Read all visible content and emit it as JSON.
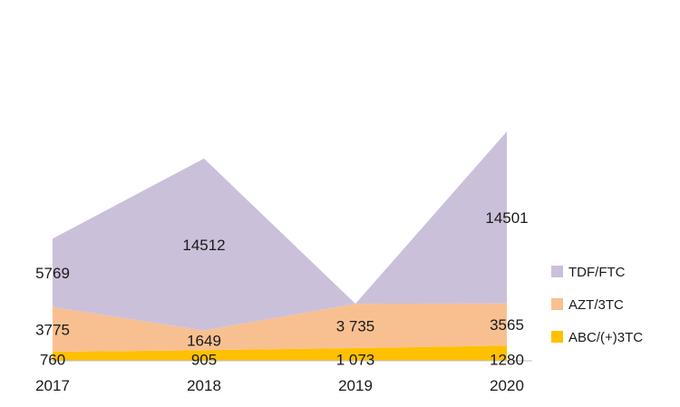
{
  "chart_data": {
    "type": "area",
    "stacked": true,
    "categories": [
      "2017",
      "2018",
      "2019",
      "2020"
    ],
    "series": [
      {
        "name": "ABC/(+)3TC",
        "values": [
          760,
          905,
          1073,
          1280
        ],
        "labels": [
          "760",
          "905",
          "1 073",
          "1280"
        ],
        "color": "#FFC000"
      },
      {
        "name": "AZT/3TC",
        "values": [
          3775,
          1649,
          3735,
          3565
        ],
        "labels": [
          "3775",
          "1649",
          "3 735",
          "3565"
        ],
        "color": "#F8C090"
      },
      {
        "name": "TDF/FTC",
        "values": [
          5769,
          14512,
          0,
          14501
        ],
        "labels": [
          "5769",
          "14512",
          "",
          "14501"
        ],
        "color": "#CBC0DA"
      }
    ],
    "legend_position": "right",
    "grid": false,
    "axis_line_color": "#BFBFBF"
  }
}
